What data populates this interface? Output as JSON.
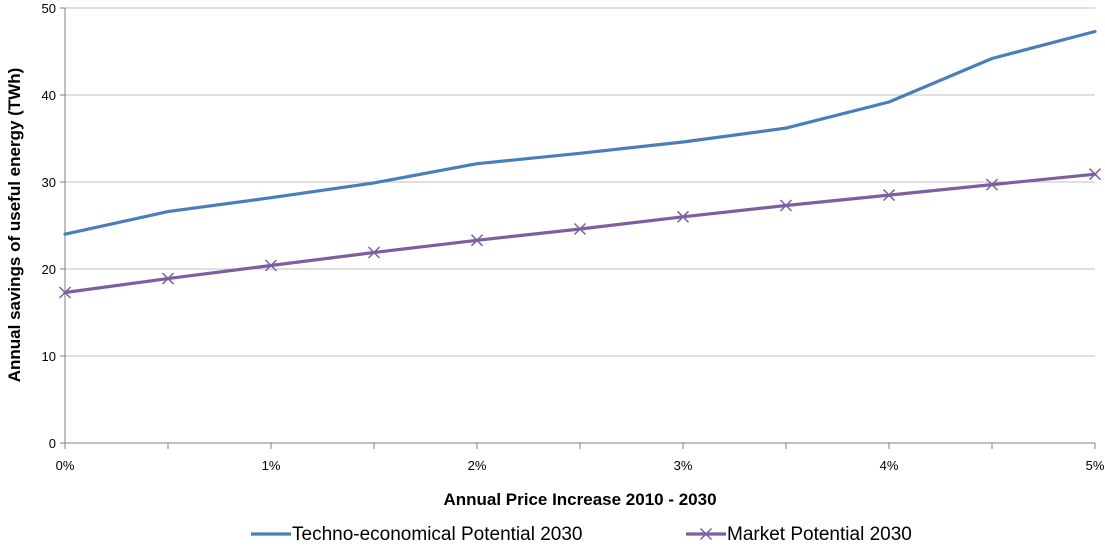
{
  "chart_data": {
    "type": "line",
    "title": "",
    "xlabel": "Annual Price Increase 2010 - 2030",
    "ylabel": "Annual savings of useful energy (TWh)",
    "x": [
      0,
      0.5,
      1,
      1.5,
      2,
      2.5,
      3,
      3.5,
      4,
      4.5,
      5
    ],
    "x_unit": "%",
    "x_tick_values": [
      0,
      1,
      2,
      3,
      4,
      5
    ],
    "x_tick_labels": [
      "0%",
      "1%",
      "2%",
      "3%",
      "4%",
      "5%"
    ],
    "xlim": [
      0,
      5
    ],
    "y_ticks": [
      "0",
      "10",
      "20",
      "30",
      "40",
      "50"
    ],
    "ylim": [
      0,
      50
    ],
    "grid": "horizontal",
    "legend_position": "bottom",
    "series": [
      {
        "name": "Techno-economical Potential 2030",
        "color": "#4a7ebb",
        "marker": "none",
        "values": [
          24.0,
          26.6,
          28.2,
          29.9,
          32.1,
          33.3,
          34.6,
          36.2,
          39.2,
          44.2,
          47.3
        ]
      },
      {
        "name": "Market Potential 2030",
        "color": "#7d5fa0",
        "marker": "x",
        "values": [
          17.3,
          18.9,
          20.4,
          21.9,
          23.3,
          24.6,
          26.0,
          27.3,
          28.5,
          29.7,
          30.9
        ]
      }
    ]
  }
}
